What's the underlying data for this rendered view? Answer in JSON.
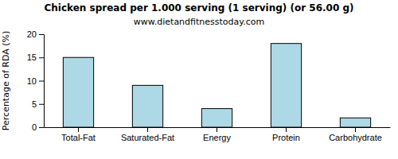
{
  "chart_data": {
    "type": "bar",
    "title": "Chicken spread per 1.000 serving (1 serving) (or 56.00 g)",
    "subtitle": "www.dietandfitnesstoday.com",
    "y_label": "Percentage of RDA (%)",
    "categories": [
      "Total-Fat",
      "Saturated-Fat",
      "Energy",
      "Protein",
      "Carbohydrate"
    ],
    "values": [
      15,
      9,
      4,
      18,
      2
    ],
    "color": "#add8e6",
    "ylim": [
      0,
      20
    ],
    "yticks": [
      0,
      5,
      10,
      15,
      20
    ],
    "grid": false
  }
}
